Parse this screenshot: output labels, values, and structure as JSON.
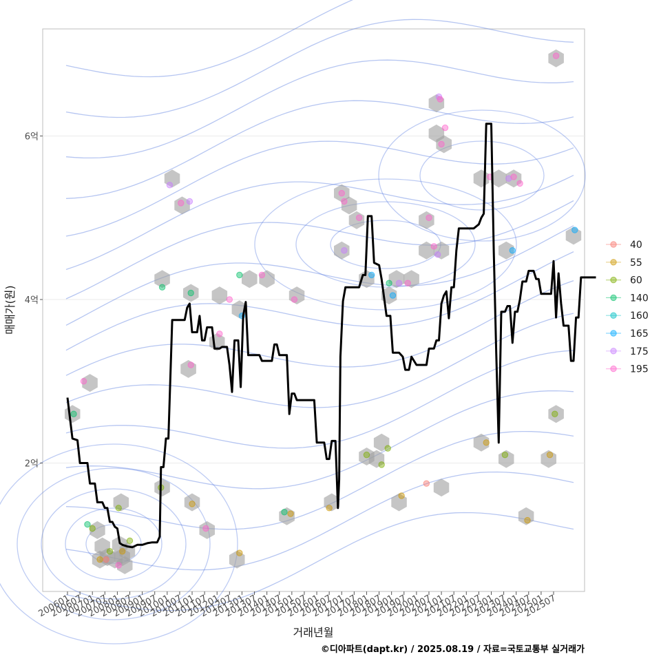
{
  "chart_data": {
    "type": "line",
    "xlabel": "거래년월",
    "ylabel": "매매가(원)",
    "caption": "©디아파트(dapt.kr) / 2025.08.19 / 자료=국토교통부 실거래가",
    "x_ticks": [
      "200601",
      "200607",
      "200701",
      "200707",
      "200801",
      "200807",
      "200901",
      "200907",
      "201001",
      "201007",
      "201101",
      "201107",
      "201201",
      "201207",
      "201301",
      "201307",
      "201401",
      "201407",
      "201501",
      "201507",
      "201601",
      "201607",
      "201701",
      "201707",
      "201801",
      "201807",
      "201901",
      "201907",
      "202001",
      "202007",
      "202101",
      "202107",
      "202201",
      "202207",
      "202301",
      "202307",
      "202401",
      "202407",
      "202501",
      "202507"
    ],
    "y_ticks": [
      {
        "value": 2,
        "label": "2억"
      },
      {
        "value": 4,
        "label": "4억"
      },
      {
        "value": 6,
        "label": "6억"
      }
    ],
    "ylim": [
      0.5,
      7.2
    ],
    "grid": true,
    "legend_position": "right",
    "legend": [
      {
        "label": "40",
        "color": "#F8766D"
      },
      {
        "label": "55",
        "color": "#CD9600"
      },
      {
        "label": "60",
        "color": "#7CAE00"
      },
      {
        "label": "140",
        "color": "#00BE67"
      },
      {
        "label": "160",
        "color": "#00BFC4"
      },
      {
        "label": "165",
        "color": "#00A9FF"
      },
      {
        "label": "175",
        "color": "#C77CFF"
      },
      {
        "label": "195",
        "color": "#FF61CC"
      }
    ],
    "line_series": {
      "color": "#000000",
      "points": [
        [
          0,
          2.8
        ],
        [
          0.2,
          2.3
        ],
        [
          0.4,
          2.28
        ],
        [
          0.5,
          2.0
        ],
        [
          0.8,
          2.0
        ],
        [
          0.9,
          1.75
        ],
        [
          1.1,
          1.75
        ],
        [
          1.2,
          1.52
        ],
        [
          1.4,
          1.52
        ],
        [
          1.5,
          1.45
        ],
        [
          1.6,
          1.45
        ],
        [
          1.7,
          1.28
        ],
        [
          1.8,
          1.28
        ],
        [
          1.9,
          1.22
        ],
        [
          2.0,
          1.2
        ],
        [
          2.1,
          1.02
        ],
        [
          2.2,
          1.0
        ],
        [
          2.4,
          0.98
        ],
        [
          2.6,
          0.97
        ],
        [
          2.8,
          1.0
        ],
        [
          3.0,
          1.0
        ],
        [
          3.2,
          1.02
        ],
        [
          3.4,
          1.03
        ],
        [
          3.6,
          1.03
        ],
        [
          3.7,
          1.1
        ],
        [
          3.75,
          1.95
        ],
        [
          3.85,
          1.95
        ],
        [
          3.95,
          2.3
        ],
        [
          4.05,
          2.3
        ],
        [
          4.2,
          3.75
        ],
        [
          4.4,
          3.75
        ],
        [
          4.6,
          3.75
        ],
        [
          4.7,
          3.75
        ],
        [
          4.8,
          3.9
        ],
        [
          4.9,
          3.95
        ],
        [
          5.0,
          3.6
        ],
        [
          5.2,
          3.6
        ],
        [
          5.3,
          3.8
        ],
        [
          5.4,
          3.5
        ],
        [
          5.5,
          3.5
        ],
        [
          5.6,
          3.66
        ],
        [
          5.8,
          3.66
        ],
        [
          5.9,
          3.4
        ],
        [
          6.1,
          3.4
        ],
        [
          6.2,
          3.42
        ],
        [
          6.4,
          3.42
        ],
        [
          6.5,
          3.2
        ],
        [
          6.6,
          2.87
        ],
        [
          6.7,
          3.5
        ],
        [
          6.85,
          3.5
        ],
        [
          6.95,
          2.93
        ],
        [
          7.05,
          3.8
        ],
        [
          7.15,
          3.97
        ],
        [
          7.25,
          3.32
        ],
        [
          7.4,
          3.32
        ],
        [
          7.7,
          3.32
        ],
        [
          7.8,
          3.25
        ],
        [
          8.2,
          3.25
        ],
        [
          8.3,
          3.45
        ],
        [
          8.4,
          3.45
        ],
        [
          8.5,
          3.32
        ],
        [
          8.8,
          3.32
        ],
        [
          8.9,
          2.6
        ],
        [
          9.0,
          2.85
        ],
        [
          9.1,
          2.85
        ],
        [
          9.2,
          2.77
        ],
        [
          9.5,
          2.77
        ],
        [
          9.9,
          2.77
        ],
        [
          10.0,
          2.25
        ],
        [
          10.3,
          2.25
        ],
        [
          10.4,
          2.05
        ],
        [
          10.5,
          2.05
        ],
        [
          10.6,
          2.27
        ],
        [
          10.75,
          2.27
        ],
        [
          10.85,
          1.45
        ],
        [
          10.9,
          1.8
        ],
        [
          10.95,
          3.3
        ],
        [
          11.05,
          3.98
        ],
        [
          11.15,
          4.15
        ],
        [
          11.4,
          4.15
        ],
        [
          11.7,
          4.15
        ],
        [
          11.85,
          4.3
        ],
        [
          11.95,
          4.3
        ],
        [
          12.05,
          5.02
        ],
        [
          12.2,
          5.02
        ],
        [
          12.3,
          4.45
        ],
        [
          12.5,
          4.42
        ],
        [
          12.6,
          4.25
        ],
        [
          12.8,
          3.8
        ],
        [
          12.95,
          3.8
        ],
        [
          13.05,
          3.35
        ],
        [
          13.3,
          3.35
        ],
        [
          13.45,
          3.3
        ],
        [
          13.55,
          3.14
        ],
        [
          13.7,
          3.14
        ],
        [
          13.8,
          3.3
        ],
        [
          13.9,
          3.25
        ],
        [
          14.0,
          3.2
        ],
        [
          14.4,
          3.2
        ],
        [
          14.5,
          3.4
        ],
        [
          14.7,
          3.4
        ],
        [
          14.8,
          3.5
        ],
        [
          14.9,
          3.5
        ],
        [
          15.0,
          3.95
        ],
        [
          15.1,
          4.05
        ],
        [
          15.2,
          4.1
        ],
        [
          15.3,
          3.77
        ],
        [
          15.4,
          4.15
        ],
        [
          15.5,
          4.15
        ],
        [
          15.6,
          4.6
        ],
        [
          15.7,
          4.87
        ],
        [
          16.0,
          4.87
        ],
        [
          16.3,
          4.87
        ],
        [
          16.5,
          4.92
        ],
        [
          16.6,
          5.0
        ],
        [
          16.7,
          5.05
        ],
        [
          16.8,
          6.15
        ],
        [
          17.0,
          6.15
        ],
        [
          17.1,
          4.6
        ],
        [
          17.2,
          3.35
        ],
        [
          17.3,
          2.25
        ],
        [
          17.4,
          3.85
        ],
        [
          17.55,
          3.85
        ],
        [
          17.65,
          3.92
        ],
        [
          17.75,
          3.92
        ],
        [
          17.85,
          3.47
        ],
        [
          17.95,
          3.85
        ],
        [
          18.05,
          3.85
        ],
        [
          18.15,
          4.0
        ],
        [
          18.25,
          4.22
        ],
        [
          18.4,
          4.22
        ],
        [
          18.5,
          4.35
        ],
        [
          18.7,
          4.35
        ],
        [
          18.8,
          4.25
        ],
        [
          18.9,
          4.25
        ],
        [
          19.0,
          4.07
        ],
        [
          19.3,
          4.07
        ],
        [
          19.4,
          4.07
        ],
        [
          19.5,
          4.47
        ],
        [
          19.6,
          3.78
        ],
        [
          19.7,
          4.32
        ],
        [
          19.8,
          3.95
        ],
        [
          19.9,
          3.68
        ],
        [
          20.1,
          3.68
        ],
        [
          20.2,
          3.25
        ],
        [
          20.3,
          3.25
        ],
        [
          20.4,
          3.78
        ],
        [
          20.5,
          3.78
        ],
        [
          20.6,
          4.27
        ],
        [
          20.9,
          4.27
        ],
        [
          21.2,
          4.27
        ]
      ]
    },
    "hexbins": [
      [
        0.2,
        2.6
      ],
      [
        0.9,
        2.98
      ],
      [
        1.2,
        1.18
      ],
      [
        1.3,
        0.82
      ],
      [
        1.4,
        0.98
      ],
      [
        1.6,
        0.85
      ],
      [
        1.9,
        0.82
      ],
      [
        2.15,
        1.52
      ],
      [
        2.1,
        1.0
      ],
      [
        2.2,
        0.85
      ],
      [
        2.3,
        0.75
      ],
      [
        2.4,
        0.92
      ],
      [
        3.8,
        1.7
      ],
      [
        3.8,
        4.25
      ],
      [
        4.2,
        5.48
      ],
      [
        4.6,
        5.15
      ],
      [
        4.85,
        3.15
      ],
      [
        4.95,
        4.08
      ],
      [
        5.0,
        1.52
      ],
      [
        5.6,
        1.18
      ],
      [
        6.0,
        3.48
      ],
      [
        6.1,
        4.05
      ],
      [
        6.8,
        0.82
      ],
      [
        6.9,
        3.88
      ],
      [
        7.3,
        4.25
      ],
      [
        8.0,
        4.25
      ],
      [
        8.8,
        1.35
      ],
      [
        9.2,
        4.05
      ],
      [
        10.6,
        1.52
      ],
      [
        11.0,
        4.6
      ],
      [
        11.0,
        5.3
      ],
      [
        11.3,
        5.15
      ],
      [
        11.6,
        4.97
      ],
      [
        12.0,
        2.08
      ],
      [
        12.0,
        4.25
      ],
      [
        12.4,
        2.05
      ],
      [
        12.6,
        2.25
      ],
      [
        12.9,
        4.05
      ],
      [
        13.2,
        4.25
      ],
      [
        13.8,
        4.25
      ],
      [
        13.3,
        1.52
      ],
      [
        14.4,
        4.6
      ],
      [
        14.4,
        4.97
      ],
      [
        14.8,
        6.4
      ],
      [
        14.8,
        6.03
      ],
      [
        15.0,
        4.6
      ],
      [
        15.1,
        5.9
      ],
      [
        15.0,
        1.7
      ],
      [
        16.6,
        5.48
      ],
      [
        16.6,
        2.25
      ],
      [
        17.3,
        5.48
      ],
      [
        17.6,
        4.6
      ],
      [
        17.6,
        2.05
      ],
      [
        17.9,
        5.48
      ],
      [
        18.4,
        1.35
      ],
      [
        19.3,
        2.05
      ],
      [
        19.6,
        2.6
      ],
      [
        19.6,
        6.95
      ],
      [
        20.3,
        4.78
      ]
    ],
    "points": [
      {
        "x": 0.25,
        "y": 2.6,
        "s": "140"
      },
      {
        "x": 0.65,
        "y": 3.0,
        "s": "195"
      },
      {
        "x": 0.8,
        "y": 1.25,
        "s": "140"
      },
      {
        "x": 1.0,
        "y": 1.2,
        "s": "60"
      },
      {
        "x": 1.3,
        "y": 0.82,
        "s": "55"
      },
      {
        "x": 1.55,
        "y": 0.82,
        "s": "40"
      },
      {
        "x": 1.7,
        "y": 0.92,
        "s": "60"
      },
      {
        "x": 2.05,
        "y": 0.75,
        "s": "195"
      },
      {
        "x": 2.05,
        "y": 1.45,
        "s": "60"
      },
      {
        "x": 2.2,
        "y": 0.92,
        "s": "55"
      },
      {
        "x": 2.5,
        "y": 1.05,
        "s": "60"
      },
      {
        "x": 3.75,
        "y": 1.7,
        "s": "60"
      },
      {
        "x": 3.8,
        "y": 4.15,
        "s": "140"
      },
      {
        "x": 4.1,
        "y": 5.4,
        "s": "175"
      },
      {
        "x": 4.55,
        "y": 5.18,
        "s": "195"
      },
      {
        "x": 4.9,
        "y": 5.2,
        "s": "175"
      },
      {
        "x": 4.95,
        "y": 3.2,
        "s": "195"
      },
      {
        "x": 4.95,
        "y": 4.08,
        "s": "140"
      },
      {
        "x": 5.0,
        "y": 1.5,
        "s": "55"
      },
      {
        "x": 5.55,
        "y": 1.2,
        "s": "195"
      },
      {
        "x": 6.1,
        "y": 3.58,
        "s": "195"
      },
      {
        "x": 6.5,
        "y": 4.0,
        "s": "195"
      },
      {
        "x": 6.9,
        "y": 0.9,
        "s": "55"
      },
      {
        "x": 6.9,
        "y": 4.3,
        "s": "140"
      },
      {
        "x": 7.0,
        "y": 3.8,
        "s": "165"
      },
      {
        "x": 7.8,
        "y": 4.3,
        "s": "195"
      },
      {
        "x": 8.7,
        "y": 1.4,
        "s": "140"
      },
      {
        "x": 8.95,
        "y": 1.38,
        "s": "55"
      },
      {
        "x": 9.1,
        "y": 4.0,
        "s": "195"
      },
      {
        "x": 10.5,
        "y": 1.45,
        "s": "55"
      },
      {
        "x": 11.0,
        "y": 5.3,
        "s": "195"
      },
      {
        "x": 11.1,
        "y": 5.2,
        "s": "195"
      },
      {
        "x": 11.1,
        "y": 4.6,
        "s": "175"
      },
      {
        "x": 11.7,
        "y": 5.0,
        "s": "195"
      },
      {
        "x": 12.0,
        "y": 2.1,
        "s": "60"
      },
      {
        "x": 12.2,
        "y": 4.3,
        "s": "165"
      },
      {
        "x": 12.6,
        "y": 1.98,
        "s": "60"
      },
      {
        "x": 12.85,
        "y": 2.18,
        "s": "60"
      },
      {
        "x": 12.9,
        "y": 4.2,
        "s": "140"
      },
      {
        "x": 13.05,
        "y": 4.05,
        "s": "165"
      },
      {
        "x": 13.3,
        "y": 4.2,
        "s": "175"
      },
      {
        "x": 13.4,
        "y": 1.6,
        "s": "55"
      },
      {
        "x": 13.65,
        "y": 4.2,
        "s": "195"
      },
      {
        "x": 14.4,
        "y": 1.75,
        "s": "40"
      },
      {
        "x": 14.5,
        "y": 5.0,
        "s": "195"
      },
      {
        "x": 14.7,
        "y": 4.65,
        "s": "195"
      },
      {
        "x": 14.85,
        "y": 4.55,
        "s": "175"
      },
      {
        "x": 14.9,
        "y": 6.48,
        "s": "175"
      },
      {
        "x": 14.95,
        "y": 6.45,
        "s": "195"
      },
      {
        "x": 15.0,
        "y": 5.9,
        "s": "195"
      },
      {
        "x": 15.15,
        "y": 6.1,
        "s": "195"
      },
      {
        "x": 16.8,
        "y": 2.25,
        "s": "55"
      },
      {
        "x": 16.95,
        "y": 5.5,
        "s": "195"
      },
      {
        "x": 17.55,
        "y": 2.1,
        "s": "60"
      },
      {
        "x": 17.7,
        "y": 5.48,
        "s": "175"
      },
      {
        "x": 17.85,
        "y": 4.6,
        "s": "165"
      },
      {
        "x": 17.9,
        "y": 5.5,
        "s": "195"
      },
      {
        "x": 18.15,
        "y": 5.42,
        "s": "195"
      },
      {
        "x": 18.45,
        "y": 1.3,
        "s": "55"
      },
      {
        "x": 19.35,
        "y": 2.1,
        "s": "55"
      },
      {
        "x": 19.55,
        "y": 2.6,
        "s": "60"
      },
      {
        "x": 19.6,
        "y": 6.98,
        "s": "195"
      },
      {
        "x": 20.35,
        "y": 4.85,
        "s": "165"
      }
    ],
    "density_contours": {
      "color": "#5b7ee0"
    }
  }
}
